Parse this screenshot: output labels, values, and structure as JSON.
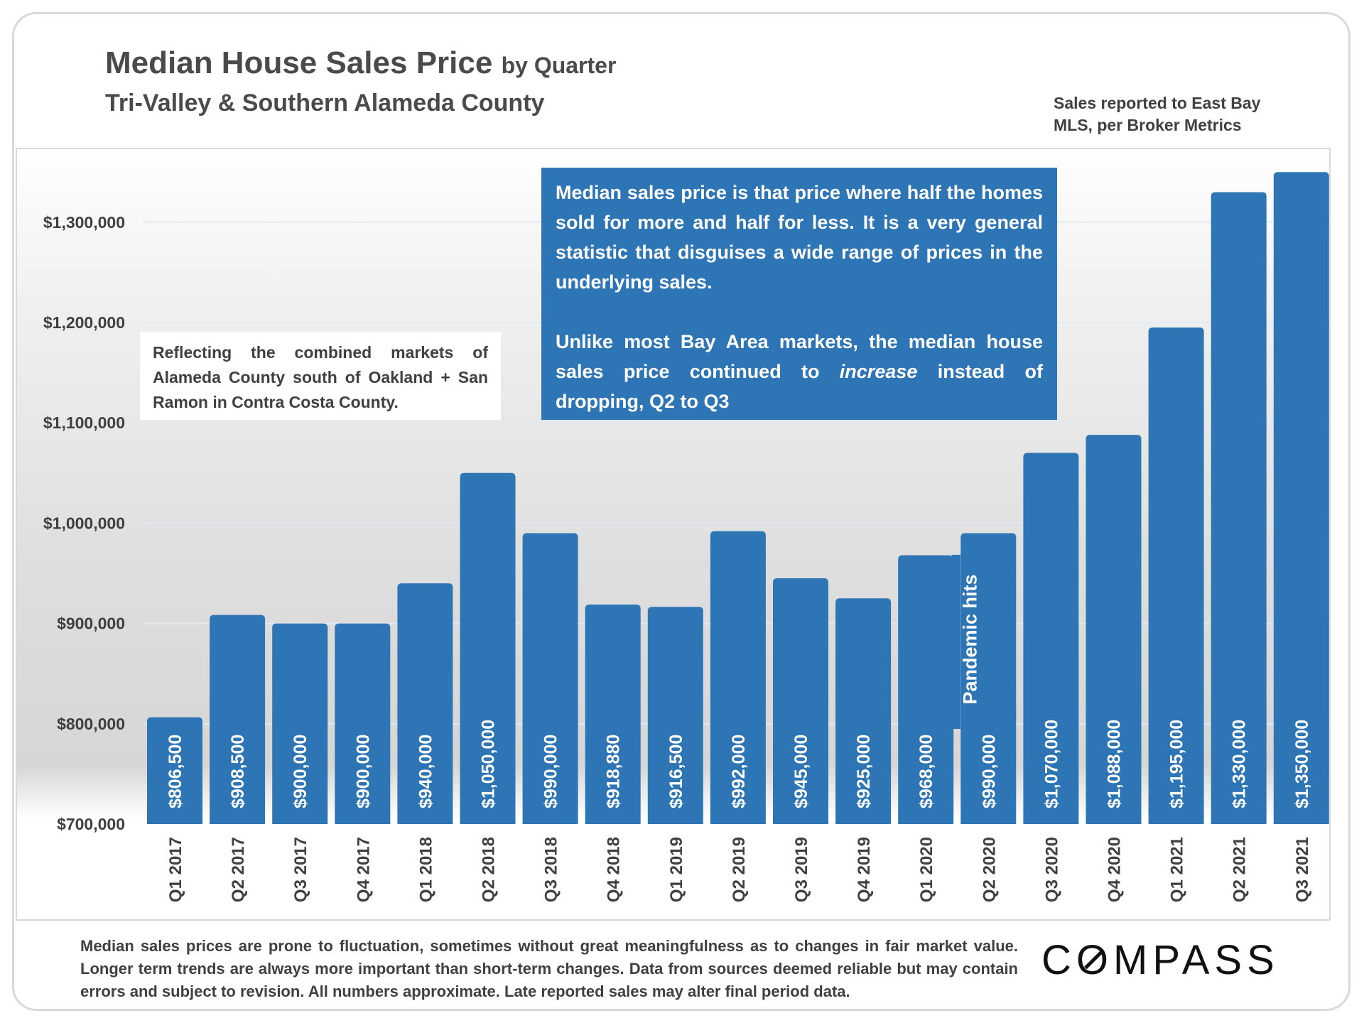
{
  "header": {
    "title": "Median House Sales Price",
    "title_suffix": "by Quarter",
    "subtitle": "Tri-Valley & Southern Alameda County",
    "source_line1": "Sales reported to East Bay",
    "source_line2": "MLS, per Broker Metrics"
  },
  "notes": {
    "definition": "Median sales price is that price where half the homes sold for more and half for less. It is a very general statistic that disguises a wide range of prices in the underlying sales.",
    "trend_before": "Unlike most Bay Area markets, the median house sales price continued to ",
    "trend_em": "increase",
    "trend_after": " instead of dropping, Q2 to Q3",
    "coverage": "Reflecting the combined markets of Alameda County south of Oakland + San Ramon in Contra Costa County.",
    "pandemic": "Pandemic hits"
  },
  "footer": {
    "disclaimer": "Median sales prices are prone to fluctuation, sometimes without great meaningfulness as to changes in fair market value. Longer term trends are always more important than short-term changes. Data from sources deemed reliable but may contain errors and subject to revision. All numbers approximate. Late reported sales may alter final period data.",
    "logo": "COMPASS"
  },
  "chart_data": {
    "type": "bar",
    "title": "Median House Sales Price by Quarter",
    "subtitle": "Tri-Valley & Southern Alameda County",
    "categories": [
      "Q1 2017",
      "Q2 2017",
      "Q3 2017",
      "Q4 2017",
      "Q1 2018",
      "Q2 2018",
      "Q3 2018",
      "Q4 2018",
      "Q1 2019",
      "Q2 2019",
      "Q3 2019",
      "Q4 2019",
      "Q1 2020",
      "Q2 2020",
      "Q3 2020",
      "Q4 2020",
      "Q1 2021",
      "Q2 2021",
      "Q3 2021"
    ],
    "values": [
      806500,
      908500,
      900000,
      900000,
      940000,
      1050000,
      990000,
      918880,
      916500,
      992000,
      945000,
      925000,
      968000,
      990000,
      1070000,
      1088000,
      1195000,
      1330000,
      1350000
    ],
    "data_labels": [
      "$806,500",
      "$908,500",
      "$900,000",
      "$900,000",
      "$940,000",
      "$1,050,000",
      "$990,000",
      "$918,880",
      "$916,500",
      "$992,000",
      "$945,000",
      "$925,000",
      "$968,000",
      "$990,000",
      "$1,070,000",
      "$1,088,000",
      "$1,195,000",
      "$1,330,000",
      "$1,350,000"
    ],
    "yticks": [
      700000,
      800000,
      900000,
      1000000,
      1100000,
      1200000,
      1300000
    ],
    "ytick_labels": [
      "$700,000",
      "$800,000",
      "$900,000",
      "$1,000,000",
      "$1,100,000",
      "$1,200,000",
      "$1,300,000"
    ],
    "ylim": [
      700000,
      1360000
    ],
    "grid": true,
    "bar_color": "#2e75b6"
  }
}
